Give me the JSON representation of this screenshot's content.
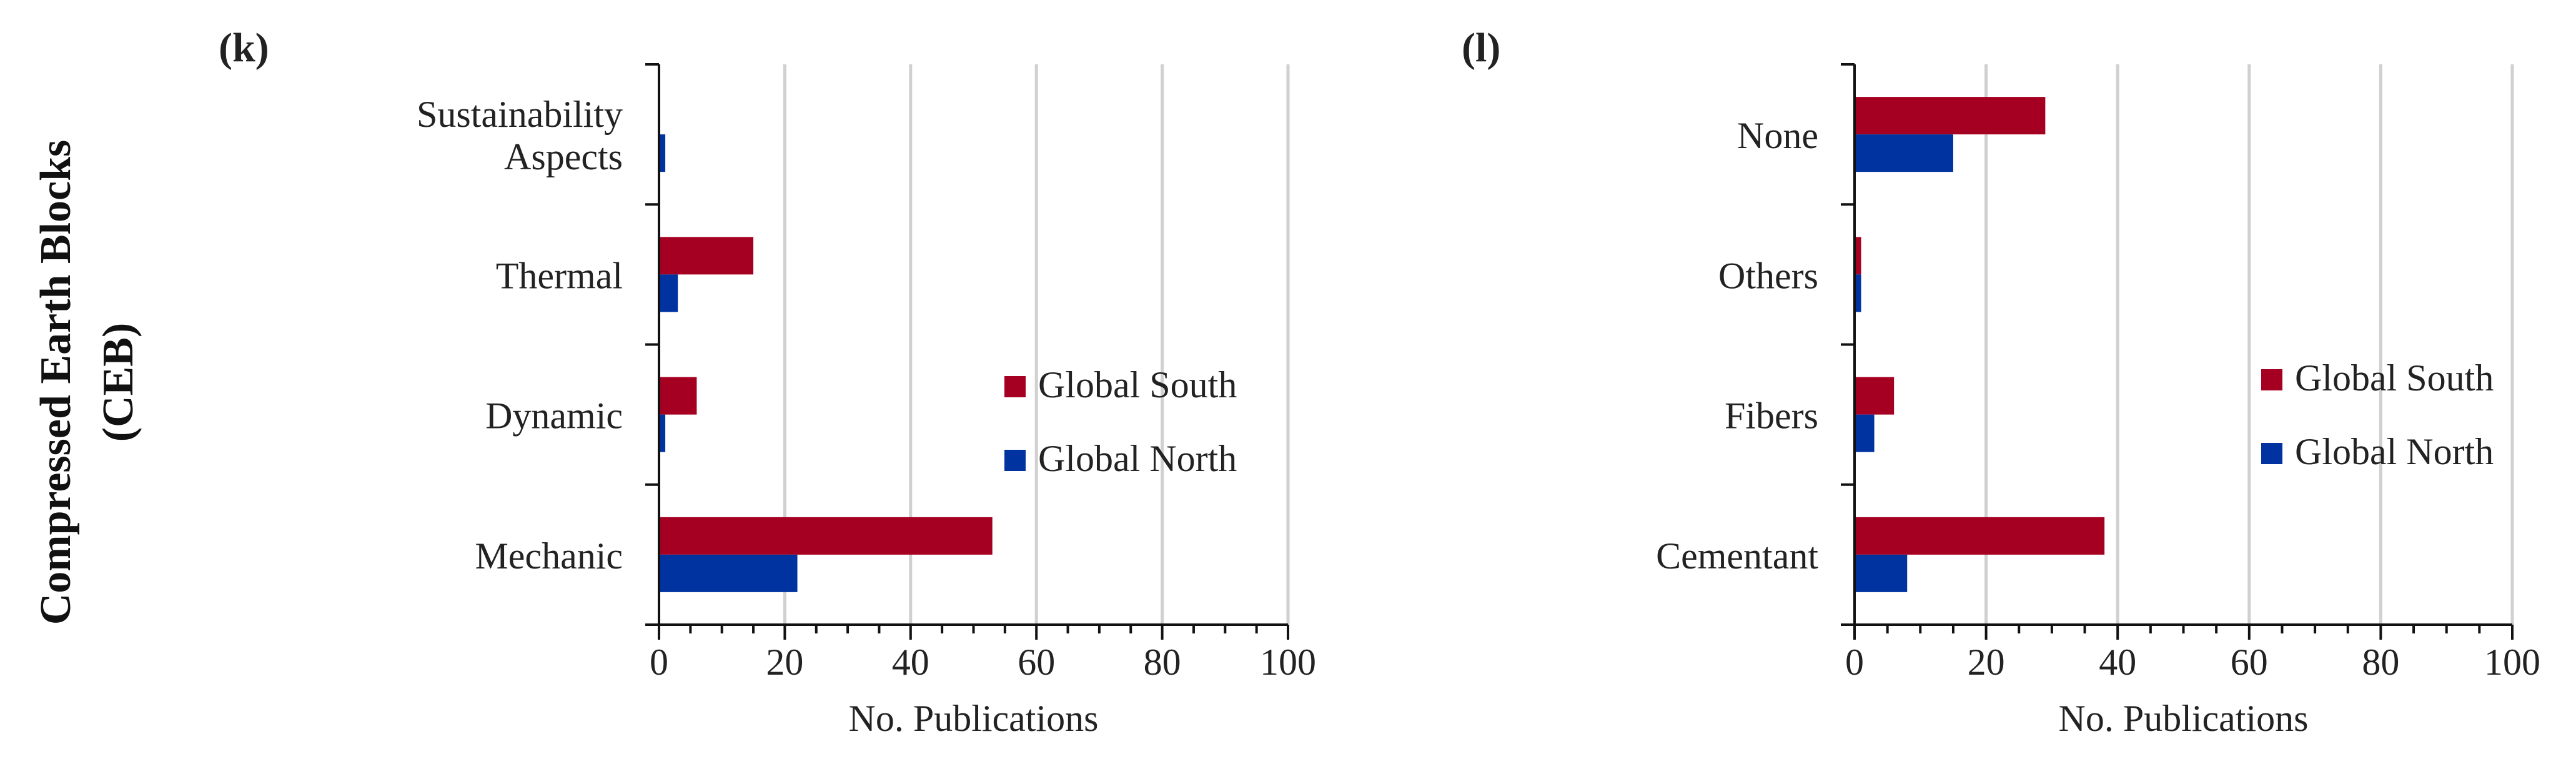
{
  "row_label": [
    "Compressed Earth Blocks",
    "(CEB)"
  ],
  "colors": {
    "global_south": "#A50021",
    "global_north": "#0033A0",
    "axis": "#111111",
    "grid": "#D0D0D0"
  },
  "chart_data": [
    {
      "panel_label": "(k)",
      "type": "bar",
      "orientation": "horizontal",
      "categories": [
        [
          "Sustainability",
          "Aspects"
        ],
        [
          "Thermal"
        ],
        [
          "Dynamic"
        ],
        [
          "Mechanic"
        ]
      ],
      "series": [
        {
          "name": "Global South",
          "color": "#A50021",
          "values": [
            0,
            15,
            6,
            53
          ]
        },
        {
          "name": "Global North",
          "color": "#0033A0",
          "values": [
            1,
            3,
            1,
            22
          ]
        }
      ],
      "xlabel": "No. Publications",
      "xlim": [
        0,
        100
      ],
      "xticks": [
        0,
        20,
        40,
        60,
        80,
        100
      ],
      "grid": "vertical",
      "legend": "right"
    },
    {
      "panel_label": "(l)",
      "type": "bar",
      "orientation": "horizontal",
      "categories": [
        [
          "None"
        ],
        [
          "Others"
        ],
        [
          "Fibers"
        ],
        [
          "Cementant"
        ]
      ],
      "series": [
        {
          "name": "Global South",
          "color": "#A50021",
          "values": [
            29,
            1,
            6,
            38
          ]
        },
        {
          "name": "Global North",
          "color": "#0033A0",
          "values": [
            15,
            1,
            3,
            8
          ]
        }
      ],
      "xlabel": "No. Publications",
      "xlim": [
        0,
        100
      ],
      "xticks": [
        0,
        20,
        40,
        60,
        80,
        100
      ],
      "grid": "vertical",
      "legend": "right"
    }
  ]
}
